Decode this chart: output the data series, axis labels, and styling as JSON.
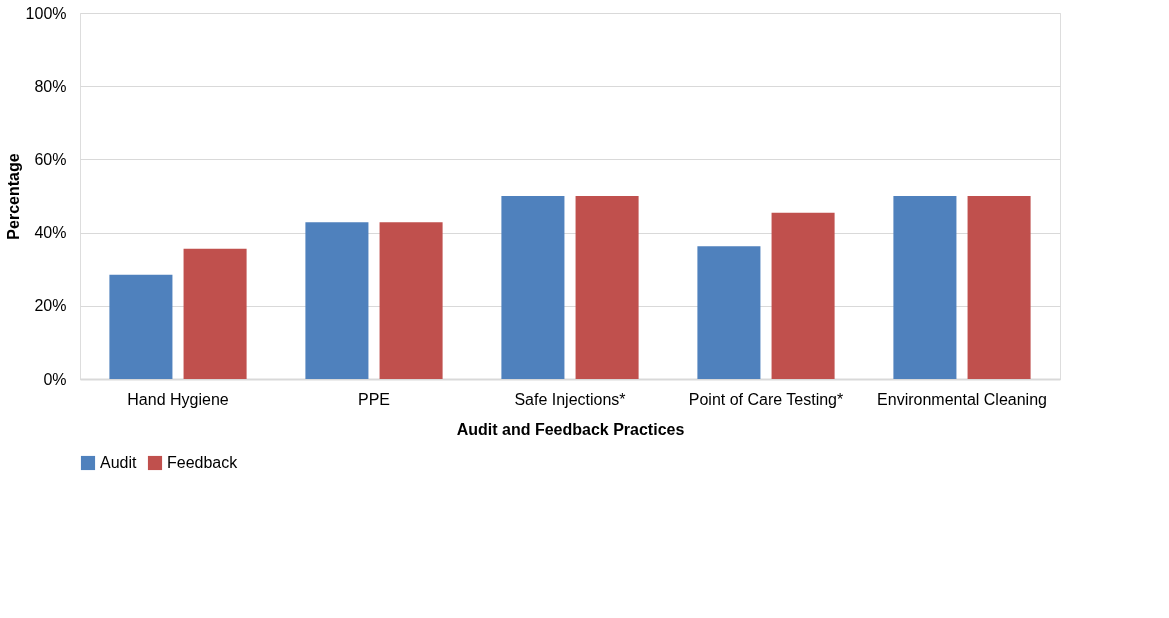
{
  "chart_data": {
    "type": "bar",
    "xlabel": "Audit and Feedback Practices",
    "ylabel": "Percentage",
    "categories": [
      "Hand Hygiene",
      "PPE",
      "Safe Injections*",
      "Point of Care Testing*",
      "Environmental Cleaning"
    ],
    "series": [
      {
        "name": "Audit",
        "color": "#4f81bd",
        "values": [
          28.5,
          42.8,
          50,
          36.3,
          50
        ]
      },
      {
        "name": "Feedback",
        "color": "#c0504d",
        "values": [
          35.6,
          42.8,
          50,
          45.4,
          50
        ]
      }
    ],
    "ylim": [
      0,
      100
    ],
    "yticks": [
      {
        "value": 0,
        "label": "0%"
      },
      {
        "value": 20,
        "label": "20%"
      },
      {
        "value": 40,
        "label": "40%"
      },
      {
        "value": 60,
        "label": "60%"
      },
      {
        "value": 80,
        "label": "80%"
      },
      {
        "value": 100,
        "label": "100%"
      }
    ],
    "grid": "y",
    "legend": "bottom"
  }
}
